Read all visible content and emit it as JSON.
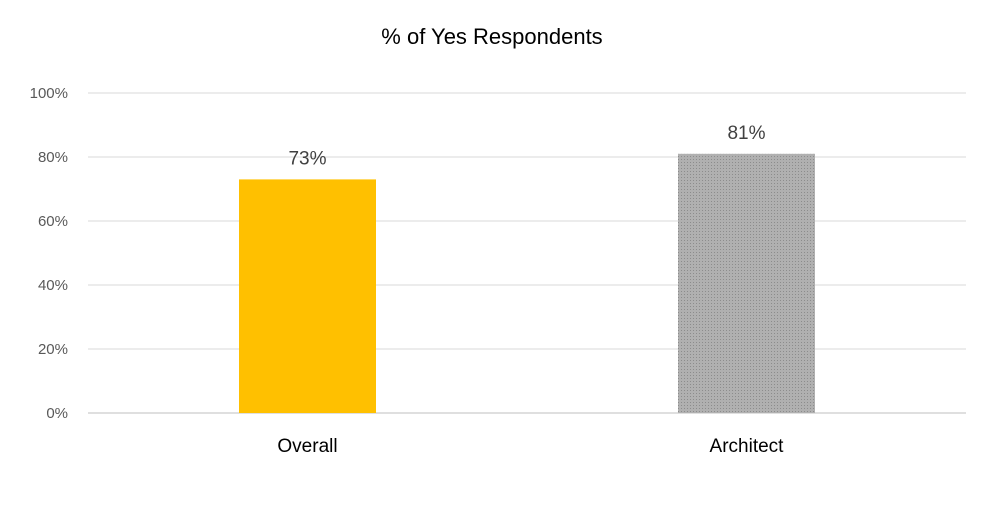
{
  "chart_data": {
    "type": "bar",
    "title": "% of Yes Respondents",
    "categories": [
      "Overall",
      "Architect"
    ],
    "values": [
      73,
      81
    ],
    "data_labels": [
      "73%",
      "81%"
    ],
    "bar_colors": [
      "#ffc000",
      "#a6a6a6"
    ],
    "ylim": [
      0,
      100
    ],
    "yticks": [
      0,
      20,
      40,
      60,
      80,
      100
    ],
    "ytick_labels": [
      "0%",
      "20%",
      "40%",
      "60%",
      "80%",
      "100%"
    ],
    "xlabel": "",
    "ylabel": "",
    "grid": true,
    "legend": "none"
  }
}
